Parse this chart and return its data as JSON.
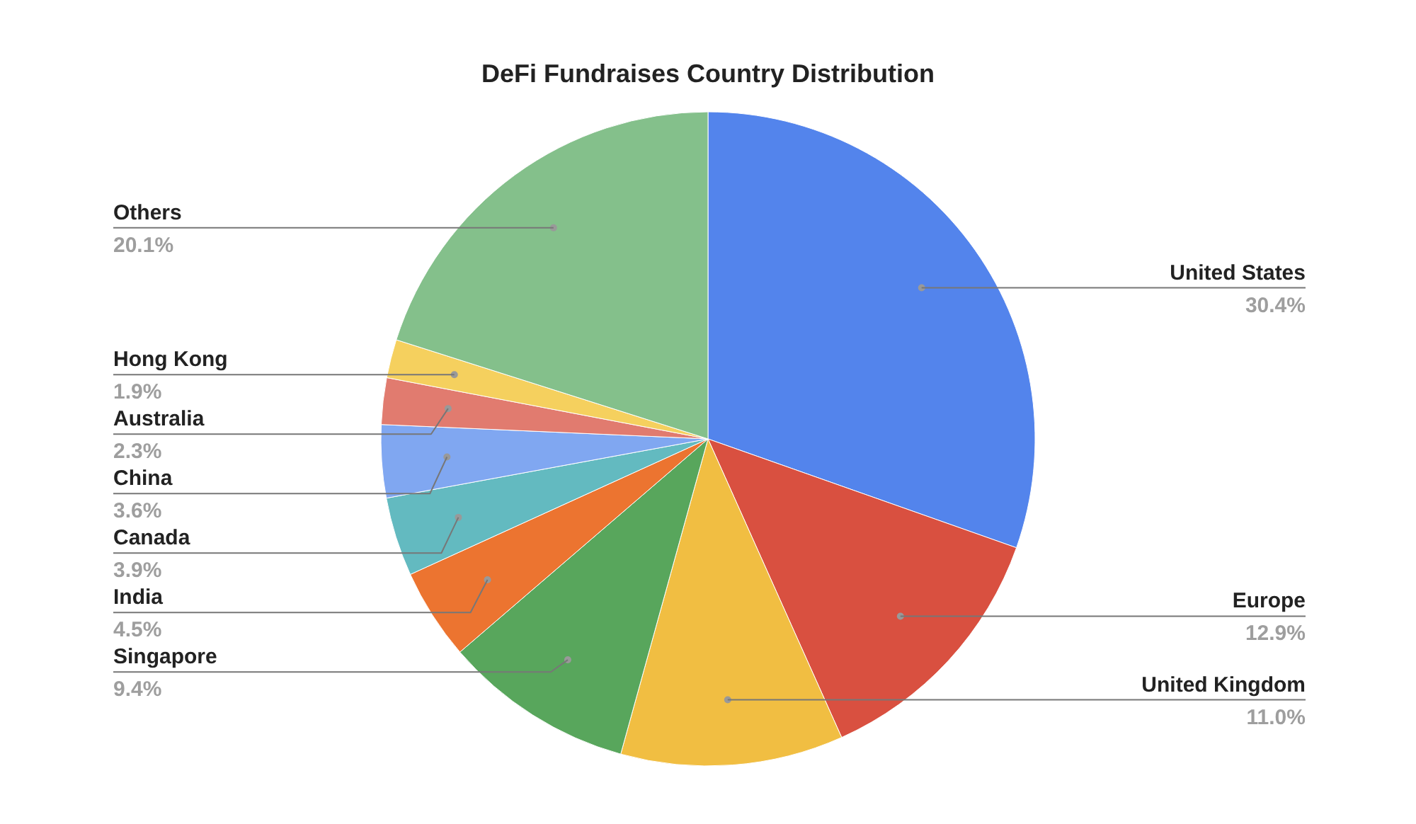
{
  "chart_data": {
    "type": "pie",
    "title": "DeFi Fundraises Country Distribution",
    "categories": [
      "United States",
      "Europe",
      "United Kingdom",
      "Singapore",
      "India",
      "Canada",
      "China",
      "Australia",
      "Hong Kong",
      "Others"
    ],
    "values": [
      30.4,
      12.9,
      11.0,
      9.4,
      4.5,
      3.9,
      3.6,
      2.3,
      1.9,
      20.1
    ],
    "colors": [
      "#5384ec",
      "#d95040",
      "#f1be42",
      "#58a65c",
      "#ec7430",
      "#63bac0",
      "#80a7f1",
      "#e17b6f",
      "#f5d05e",
      "#84c08b"
    ],
    "value_labels": [
      "30.4%",
      "12.9%",
      "11.0%",
      "9.4%",
      "4.5%",
      "3.9%",
      "3.6%",
      "2.3%",
      "1.9%",
      "20.1%"
    ],
    "legend": false
  }
}
